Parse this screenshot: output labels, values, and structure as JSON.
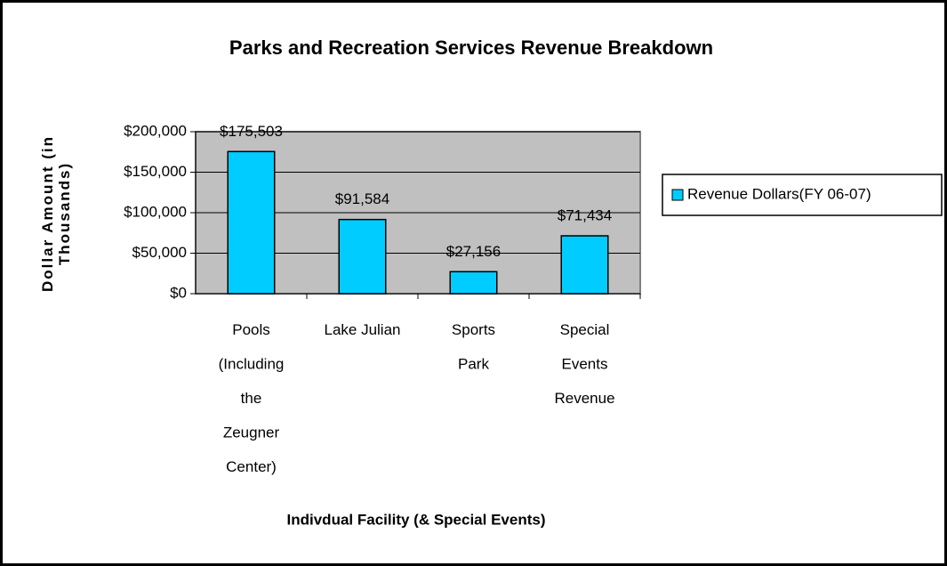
{
  "chart_data": {
    "type": "bar",
    "title": "Parks and Recreation Services Revenue Breakdown",
    "xlabel": "Indivdual Facility (& Special Events)",
    "ylabel": "Dollar Amount (in\nThousands)",
    "categories": [
      "Pools\n(Including\nthe\nZeugner\nCenter)",
      "Lake Julian",
      "Sports\nPark",
      "Special\nEvents\nRevenue"
    ],
    "series": [
      {
        "name": "Revenue Dollars(FY 06-07)",
        "color": "#00ccff",
        "values": [
          175503,
          91584,
          27156,
          71434
        ],
        "value_labels": [
          "$175,503",
          "$91,584",
          "$27,156",
          "$71,434"
        ]
      }
    ],
    "ylim": [
      0,
      200000
    ],
    "yticks": [
      {
        "value": 0,
        "label": "$0"
      },
      {
        "value": 50000,
        "label": "$50,000"
      },
      {
        "value": 100000,
        "label": "$100,000"
      },
      {
        "value": 150000,
        "label": "$150,000"
      },
      {
        "value": 200000,
        "label": "$200,000"
      }
    ],
    "grid": true,
    "legend": "right"
  }
}
